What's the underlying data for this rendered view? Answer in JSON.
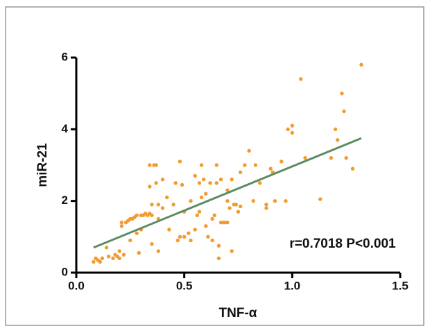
{
  "chart_data": {
    "type": "scatter",
    "xlabel": "TNF-α",
    "ylabel": "miR-21",
    "annotation": "r=0.7018 P<0.001",
    "xlim": [
      0,
      1.5
    ],
    "ylim": [
      0,
      6
    ],
    "xticks": [
      {
        "value": 0,
        "label": "0.0"
      },
      {
        "value": 0.5,
        "label": "0.5"
      },
      {
        "value": 1,
        "label": "1.0"
      },
      {
        "value": 1.5,
        "label": "1.5"
      }
    ],
    "yticks": [
      0,
      2,
      4,
      6
    ],
    "series": [
      {
        "color": "#f29b30",
        "x": [
          0.08,
          0.09,
          0.1,
          0.11,
          0.12,
          0.14,
          0.15,
          0.17,
          0.18,
          0.19,
          0.2,
          0.2,
          0.21,
          0.21,
          0.22,
          0.23,
          0.24,
          0.25,
          0.25,
          0.26,
          0.27,
          0.28,
          0.28,
          0.29,
          0.3,
          0.3,
          0.31,
          0.32,
          0.33,
          0.34,
          0.35,
          0.34,
          0.34,
          0.35,
          0.35,
          0.36,
          0.37,
          0.37,
          0.38,
          0.38,
          0.38,
          0.4,
          0.4,
          0.42,
          0.43,
          0.45,
          0.46,
          0.47,
          0.48,
          0.48,
          0.49,
          0.5,
          0.5,
          0.52,
          0.53,
          0.53,
          0.55,
          0.55,
          0.56,
          0.57,
          0.57,
          0.58,
          0.58,
          0.59,
          0.6,
          0.6,
          0.61,
          0.62,
          0.63,
          0.63,
          0.64,
          0.65,
          0.65,
          0.66,
          0.66,
          0.67,
          0.67,
          0.68,
          0.69,
          0.7,
          0.7,
          0.7,
          0.71,
          0.72,
          0.72,
          0.73,
          0.74,
          0.75,
          0.76,
          0.76,
          0.78,
          0.8,
          0.82,
          0.83,
          0.85,
          0.88,
          0.88,
          0.9,
          0.91,
          0.92,
          0.95,
          0.97,
          0.98,
          1.0,
          1.0,
          1.04,
          1.06,
          1.13,
          1.18,
          1.2,
          1.21,
          1.23,
          1.24,
          1.25,
          1.28,
          1.32
        ],
        "values": [
          0.3,
          0.4,
          0.35,
          0.3,
          0.4,
          0.7,
          0.45,
          0.4,
          0.5,
          0.45,
          0.4,
          0.6,
          1.3,
          1.4,
          0.5,
          1.4,
          1.45,
          1.5,
          0.9,
          1.5,
          1.55,
          1.6,
          1.1,
          0.55,
          1.6,
          1.2,
          1.6,
          1.65,
          1.6,
          1.65,
          1.6,
          3.0,
          2.4,
          1.9,
          0.8,
          3.0,
          3.0,
          2.5,
          1.9,
          0.6,
          1.5,
          2.6,
          1.8,
          2.1,
          1.2,
          1.9,
          2.5,
          0.9,
          3.1,
          1.0,
          2.45,
          1.7,
          1.0,
          1.1,
          2.0,
          0.9,
          2.7,
          1.2,
          1.6,
          2.5,
          1.7,
          3.0,
          2.1,
          2.6,
          1.3,
          2.2,
          1.0,
          2.5,
          1.5,
          0.9,
          1.6,
          3.0,
          2.5,
          0.75,
          0.4,
          1.4,
          2.6,
          1.4,
          1.4,
          2.0,
          2.3,
          1.4,
          1.8,
          2.6,
          0.6,
          1.9,
          1.9,
          1.7,
          2.8,
          1.85,
          3.0,
          3.4,
          2.0,
          3.0,
          2.5,
          1.9,
          1.8,
          2.9,
          2.8,
          2.0,
          3.1,
          2.0,
          4.0,
          4.1,
          3.9,
          5.4,
          3.2,
          2.05,
          3.2,
          4.0,
          3.7,
          5.0,
          4.5,
          3.2,
          2.9,
          5.8
        ]
      }
    ],
    "trendline": {
      "color": "#5b8c62",
      "x": [
        0.08,
        1.32
      ],
      "values": [
        0.7,
        3.75
      ]
    }
  }
}
